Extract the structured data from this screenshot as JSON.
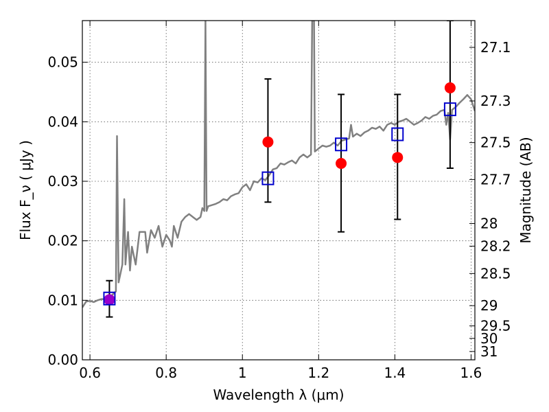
{
  "chart_data": {
    "type": "line",
    "xlabel": "Wavelength  λ (μm)",
    "ylabel": "Flux  F_ν  ( μJy )",
    "ylabel_right": "Magnitude (AB)",
    "xlim": [
      0.58,
      1.61
    ],
    "ylim": [
      0.0,
      0.057
    ],
    "grid": true,
    "x_ticks": [
      {
        "value": 0.6,
        "label": "0.6"
      },
      {
        "value": 0.8,
        "label": "0.8"
      },
      {
        "value": 1.0,
        "label": "1"
      },
      {
        "value": 1.2,
        "label": "1.2"
      },
      {
        "value": 1.4,
        "label": "1.4"
      },
      {
        "value": 1.6,
        "label": "1.6"
      }
    ],
    "y_ticks": [
      {
        "value": 0.0,
        "label": "0.00"
      },
      {
        "value": 0.01,
        "label": "0.01"
      },
      {
        "value": 0.02,
        "label": "0.02"
      },
      {
        "value": 0.03,
        "label": "0.03"
      },
      {
        "value": 0.04,
        "label": "0.04"
      },
      {
        "value": 0.05,
        "label": "0.05"
      }
    ],
    "right_ticks": [
      {
        "flux": 0.0525,
        "label": "27.1"
      },
      {
        "flux": 0.0435,
        "label": "27.3"
      },
      {
        "flux": 0.0365,
        "label": "27.5"
      },
      {
        "flux": 0.0303,
        "label": "27.7"
      },
      {
        "flux": 0.0229,
        "label": "28"
      },
      {
        "flux": 0.0191,
        "label": "28.2"
      },
      {
        "flux": 0.0145,
        "label": "28.5"
      },
      {
        "flux": 0.0091,
        "label": "29"
      },
      {
        "flux": 0.0057,
        "label": "29.5"
      },
      {
        "flux": 0.0036,
        "label": "30"
      },
      {
        "flux": 0.0014,
        "label": "31"
      }
    ],
    "series": [
      {
        "style": "line",
        "color": "#808080",
        "points": [
          [
            0.58,
            0.0088
          ],
          [
            0.59,
            0.0098
          ],
          [
            0.6,
            0.0099
          ],
          [
            0.61,
            0.0097
          ],
          [
            0.62,
            0.01
          ],
          [
            0.63,
            0.0102
          ],
          [
            0.64,
            0.0102
          ],
          [
            0.65,
            0.0105
          ],
          [
            0.66,
            0.011
          ],
          [
            0.668,
            0.0115
          ],
          [
            0.671,
            0.0376
          ],
          [
            0.675,
            0.013
          ],
          [
            0.685,
            0.016
          ],
          [
            0.69,
            0.027
          ],
          [
            0.693,
            0.016
          ],
          [
            0.7,
            0.0215
          ],
          [
            0.705,
            0.015
          ],
          [
            0.71,
            0.019
          ],
          [
            0.72,
            0.016
          ],
          [
            0.73,
            0.0215
          ],
          [
            0.745,
            0.0215
          ],
          [
            0.75,
            0.018
          ],
          [
            0.76,
            0.0218
          ],
          [
            0.77,
            0.0205
          ],
          [
            0.78,
            0.0225
          ],
          [
            0.79,
            0.019
          ],
          [
            0.8,
            0.021
          ],
          [
            0.81,
            0.02
          ],
          [
            0.815,
            0.019
          ],
          [
            0.82,
            0.0225
          ],
          [
            0.83,
            0.0205
          ],
          [
            0.84,
            0.0232
          ],
          [
            0.85,
            0.024
          ],
          [
            0.86,
            0.0245
          ],
          [
            0.87,
            0.024
          ],
          [
            0.88,
            0.0235
          ],
          [
            0.89,
            0.024
          ],
          [
            0.895,
            0.0255
          ],
          [
            0.9,
            0.025
          ],
          [
            0.903,
            0.057
          ],
          [
            0.906,
            0.025
          ],
          [
            0.91,
            0.0258
          ],
          [
            0.92,
            0.026
          ],
          [
            0.93,
            0.0262
          ],
          [
            0.94,
            0.0265
          ],
          [
            0.95,
            0.027
          ],
          [
            0.96,
            0.0268
          ],
          [
            0.97,
            0.0275
          ],
          [
            0.98,
            0.0278
          ],
          [
            0.99,
            0.028
          ],
          [
            1.0,
            0.029
          ],
          [
            1.01,
            0.0295
          ],
          [
            1.02,
            0.0285
          ],
          [
            1.03,
            0.03
          ],
          [
            1.04,
            0.0298
          ],
          [
            1.05,
            0.0305
          ],
          [
            1.06,
            0.0302
          ],
          [
            1.07,
            0.031
          ],
          [
            1.08,
            0.032
          ],
          [
            1.09,
            0.0322
          ],
          [
            1.1,
            0.033
          ],
          [
            1.11,
            0.0328
          ],
          [
            1.12,
            0.0332
          ],
          [
            1.13,
            0.0335
          ],
          [
            1.14,
            0.033
          ],
          [
            1.15,
            0.034
          ],
          [
            1.16,
            0.0345
          ],
          [
            1.17,
            0.034
          ],
          [
            1.18,
            0.0345
          ],
          [
            1.183,
            0.057
          ],
          [
            1.188,
            0.057
          ],
          [
            1.19,
            0.035
          ],
          [
            1.2,
            0.0355
          ],
          [
            1.21,
            0.036
          ],
          [
            1.22,
            0.0358
          ],
          [
            1.23,
            0.036
          ],
          [
            1.24,
            0.0365
          ],
          [
            1.25,
            0.036
          ],
          [
            1.26,
            0.0368
          ],
          [
            1.27,
            0.037
          ],
          [
            1.28,
            0.0372
          ],
          [
            1.285,
            0.0395
          ],
          [
            1.29,
            0.0375
          ],
          [
            1.3,
            0.038
          ],
          [
            1.31,
            0.0376
          ],
          [
            1.32,
            0.0382
          ],
          [
            1.33,
            0.0385
          ],
          [
            1.34,
            0.039
          ],
          [
            1.35,
            0.0388
          ],
          [
            1.36,
            0.0392
          ],
          [
            1.37,
            0.0385
          ],
          [
            1.38,
            0.0395
          ],
          [
            1.39,
            0.0398
          ],
          [
            1.4,
            0.0395
          ],
          [
            1.41,
            0.04
          ],
          [
            1.42,
            0.0402
          ],
          [
            1.43,
            0.0405
          ],
          [
            1.44,
            0.04
          ],
          [
            1.45,
            0.0395
          ],
          [
            1.46,
            0.0398
          ],
          [
            1.47,
            0.0402
          ],
          [
            1.48,
            0.0408
          ],
          [
            1.49,
            0.0405
          ],
          [
            1.5,
            0.041
          ],
          [
            1.51,
            0.0412
          ],
          [
            1.52,
            0.0418
          ],
          [
            1.53,
            0.042
          ],
          [
            1.535,
            0.0395
          ],
          [
            1.54,
            0.0415
          ],
          [
            1.545,
            0.037
          ],
          [
            1.55,
            0.042
          ],
          [
            1.56,
            0.0425
          ],
          [
            1.57,
            0.0432
          ],
          [
            1.58,
            0.0438
          ],
          [
            1.59,
            0.0445
          ],
          [
            1.6,
            0.0438
          ],
          [
            1.61,
            0.0418
          ]
        ]
      },
      {
        "style": "errorbar",
        "color": "#000000",
        "points": [
          {
            "x": 0.651,
            "low": 0.0072,
            "high": 0.0133
          },
          {
            "x": 1.067,
            "low": 0.0265,
            "high": 0.0472
          },
          {
            "x": 1.259,
            "low": 0.0215,
            "high": 0.0446
          },
          {
            "x": 1.407,
            "low": 0.0236,
            "high": 0.0446
          },
          {
            "x": 1.545,
            "low": 0.0322,
            "high": 0.057
          }
        ]
      },
      {
        "style": "marker-circle",
        "color": "#ff0000",
        "points": [
          {
            "x": 0.651,
            "y": 0.0101
          },
          {
            "x": 1.067,
            "y": 0.0366
          },
          {
            "x": 1.259,
            "y": 0.033
          },
          {
            "x": 1.407,
            "y": 0.034
          },
          {
            "x": 1.545,
            "y": 0.0457
          }
        ]
      },
      {
        "style": "marker-circle",
        "color": "#9900cc",
        "points": [
          {
            "x": 0.651,
            "y": 0.0101
          }
        ]
      },
      {
        "style": "marker-square-open",
        "color": "#0000cc",
        "points": [
          {
            "x": 0.651,
            "y": 0.0103
          },
          {
            "x": 1.067,
            "y": 0.0305
          },
          {
            "x": 1.259,
            "y": 0.0362
          },
          {
            "x": 1.407,
            "y": 0.0379
          },
          {
            "x": 1.545,
            "y": 0.0421
          }
        ]
      }
    ]
  }
}
